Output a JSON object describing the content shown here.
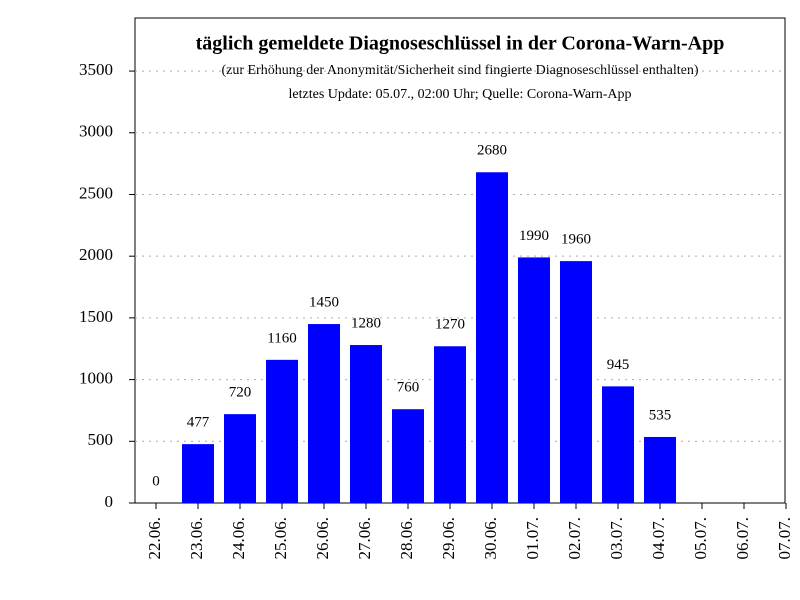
{
  "chart_data": {
    "type": "bar",
    "title": "täglich gemeldete Diagnoseschlüssel in der Corona-Warn-App",
    "subtitle": "(zur Erhöhung der Anonymität/Sicherheit sind fingierte Diagnoseschlüssel enthalten)",
    "note": "letztes Update: 05.07., 02:00 Uhr; Quelle: Corona-Warn-App",
    "categories": [
      "22.06.",
      "23.06.",
      "24.06.",
      "25.06.",
      "26.06.",
      "27.06.",
      "28.06.",
      "29.06.",
      "30.06.",
      "01.07.",
      "02.07.",
      "03.07.",
      "04.07.",
      "05.07.",
      "06.07.",
      "07.07."
    ],
    "values": [
      0,
      477,
      720,
      1160,
      1450,
      1280,
      760,
      1270,
      2680,
      1990,
      1960,
      945,
      535,
      null,
      null,
      null
    ],
    "color": "#0000ff",
    "ylim": [
      0,
      3930
    ],
    "yticks": [
      0,
      500,
      1000,
      1500,
      2000,
      2500,
      3000,
      3500
    ],
    "grid": true
  }
}
